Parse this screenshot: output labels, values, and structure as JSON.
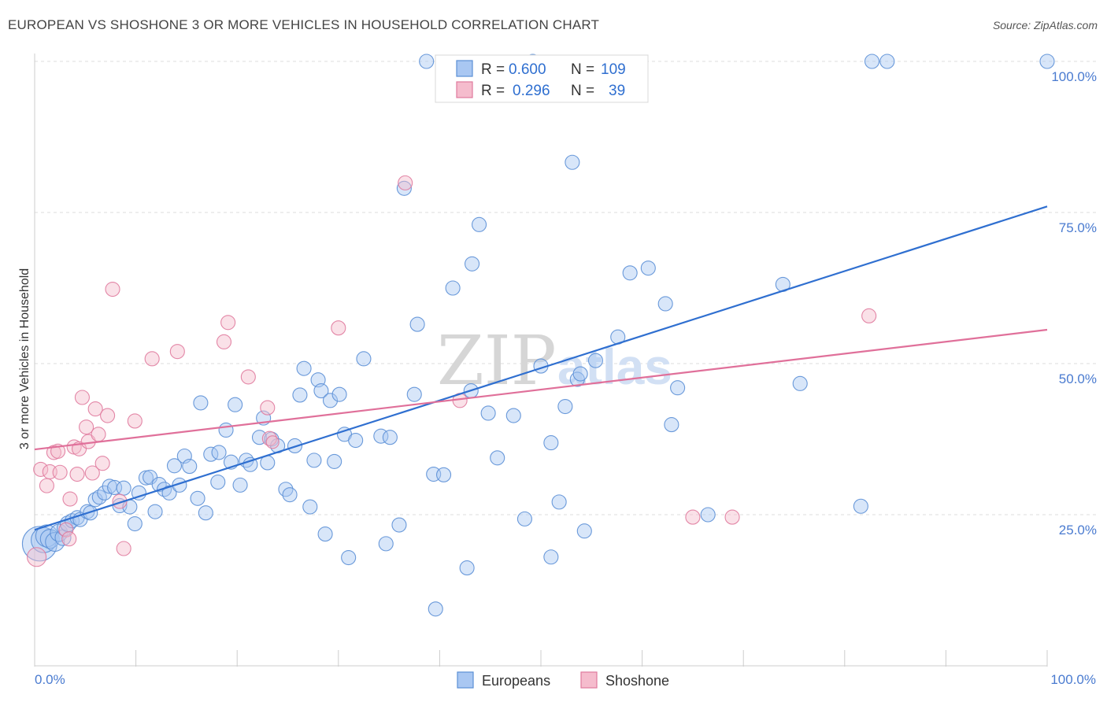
{
  "title": "EUROPEAN VS SHOSHONE 3 OR MORE VEHICLES IN HOUSEHOLD CORRELATION CHART",
  "source": "Source: ZipAtlas.com",
  "watermark": {
    "zip": "ZIP",
    "atlas": "atlas"
  },
  "legend_box": {
    "rows": [
      {
        "r_label": "R =",
        "r_value": "0.600",
        "n_label": "N =",
        "n_value": "109",
        "color": "#a9c7f2",
        "stroke": "#5b8fd6"
      },
      {
        "r_label": "R =",
        "r_value": "0.296",
        "n_label": "N =",
        "n_value": "39",
        "color": "#f5bccd",
        "stroke": "#e07a9d"
      }
    ]
  },
  "bottom_legend": [
    {
      "label": "Europeans",
      "color": "#a9c7f2",
      "stroke": "#5b8fd6"
    },
    {
      "label": "Shoshone",
      "color": "#f5bccd",
      "stroke": "#e07a9d"
    }
  ],
  "chart_data": {
    "type": "scatter",
    "title": "EUROPEAN VS SHOSHONE 3 OR MORE VEHICLES IN HOUSEHOLD CORRELATION CHART",
    "xlabel": "",
    "ylabel": "3 or more Vehicles in Household",
    "xlim": [
      0,
      100
    ],
    "ylim": [
      0,
      100
    ],
    "x_tick_labels": [
      "0.0%",
      "100.0%"
    ],
    "y_ticks": [
      25,
      50,
      75,
      100
    ],
    "y_tick_labels": [
      "25.0%",
      "50.0%",
      "75.0%",
      "100.0%"
    ],
    "grid": true,
    "series": [
      {
        "name": "Europeans",
        "color": "#a9c7f2",
        "stroke": "#5b8fd6",
        "trend": {
          "x": [
            0,
            100
          ],
          "y": [
            22.5,
            76.0
          ],
          "color": "#2f6fd0"
        },
        "points": [
          [
            0.5,
            20.2,
            22
          ],
          [
            0.9,
            20.8,
            16
          ],
          [
            1.2,
            21.5,
            14
          ],
          [
            1.5,
            21.0,
            12
          ],
          [
            2.0,
            20.5,
            12
          ],
          [
            2.4,
            22.0,
            11
          ],
          [
            2.8,
            21.2,
            10
          ],
          [
            3.0,
            22.8,
            10
          ],
          [
            3.3,
            23.5,
            10
          ],
          [
            3.7,
            24.0,
            9
          ],
          [
            4.2,
            24.5,
            9
          ],
          [
            4.5,
            24.2,
            9
          ],
          [
            5.2,
            25.5,
            9
          ],
          [
            5.5,
            25.3,
            9
          ],
          [
            6.0,
            27.5,
            9
          ],
          [
            6.4,
            27.9,
            9
          ],
          [
            6.9,
            28.6,
            9
          ],
          [
            7.4,
            29.7,
            9
          ],
          [
            7.9,
            29.5,
            9
          ],
          [
            8.4,
            26.5,
            9
          ],
          [
            8.8,
            29.4,
            9
          ],
          [
            9.4,
            26.3,
            9
          ],
          [
            9.9,
            23.5,
            9
          ],
          [
            10.3,
            28.6,
            9
          ],
          [
            11.0,
            31.1,
            9
          ],
          [
            11.4,
            31.2,
            9
          ],
          [
            11.9,
            25.5,
            9
          ],
          [
            12.3,
            30.0,
            9
          ],
          [
            12.8,
            29.2,
            9
          ],
          [
            13.3,
            28.6,
            9
          ],
          [
            13.8,
            33.1,
            9
          ],
          [
            14.3,
            29.9,
            9
          ],
          [
            14.8,
            34.7,
            9
          ],
          [
            15.3,
            33.0,
            9
          ],
          [
            16.1,
            27.7,
            9
          ],
          [
            16.4,
            43.5,
            9
          ],
          [
            16.9,
            25.3,
            9
          ],
          [
            17.4,
            35.0,
            9
          ],
          [
            18.2,
            35.3,
            9
          ],
          [
            18.1,
            30.4,
            9
          ],
          [
            18.9,
            39.0,
            9
          ],
          [
            19.4,
            33.7,
            9
          ],
          [
            19.8,
            43.2,
            9
          ],
          [
            20.3,
            29.9,
            9
          ],
          [
            20.9,
            34.0,
            9
          ],
          [
            21.3,
            33.3,
            9
          ],
          [
            22.2,
            37.8,
            9
          ],
          [
            22.6,
            41.0,
            9
          ],
          [
            23.0,
            33.6,
            9
          ],
          [
            23.4,
            37.5,
            9
          ],
          [
            24.0,
            36.4,
            9
          ],
          [
            24.8,
            29.2,
            9
          ],
          [
            25.2,
            28.3,
            9
          ],
          [
            25.7,
            36.4,
            9
          ],
          [
            26.2,
            44.8,
            9
          ],
          [
            26.6,
            49.2,
            9
          ],
          [
            27.2,
            26.3,
            9
          ],
          [
            27.6,
            34.0,
            9
          ],
          [
            28.0,
            47.3,
            9
          ],
          [
            28.3,
            45.5,
            9
          ],
          [
            28.7,
            21.8,
            9
          ],
          [
            29.2,
            43.9,
            9
          ],
          [
            29.6,
            33.8,
            9
          ],
          [
            30.1,
            44.9,
            9
          ],
          [
            30.6,
            38.3,
            9
          ],
          [
            31.0,
            17.9,
            9
          ],
          [
            31.7,
            37.3,
            9
          ],
          [
            32.5,
            50.8,
            9
          ],
          [
            34.2,
            38.0,
            9
          ],
          [
            34.7,
            20.2,
            9
          ],
          [
            35.1,
            37.8,
            9
          ],
          [
            36.0,
            23.3,
            9
          ],
          [
            36.5,
            79.0,
            9
          ],
          [
            37.5,
            44.9,
            9
          ],
          [
            37.8,
            56.5,
            9
          ],
          [
            38.7,
            100.0,
            9
          ],
          [
            39.4,
            31.7,
            9
          ],
          [
            39.6,
            9.4,
            9
          ],
          [
            40.4,
            31.6,
            9
          ],
          [
            41.3,
            62.5,
            9
          ],
          [
            42.7,
            16.2,
            9
          ],
          [
            43.1,
            45.5,
            9
          ],
          [
            43.2,
            66.5,
            9
          ],
          [
            43.9,
            73.0,
            9
          ],
          [
            44.8,
            41.8,
            9
          ],
          [
            45.7,
            34.4,
            9
          ],
          [
            47.3,
            41.4,
            9
          ],
          [
            48.4,
            24.3,
            9
          ],
          [
            49.2,
            100.0,
            9
          ],
          [
            50.0,
            49.6,
            9
          ],
          [
            51.0,
            36.9,
            9
          ],
          [
            51.0,
            18.0,
            9
          ],
          [
            51.8,
            27.1,
            9
          ],
          [
            52.4,
            42.9,
            9
          ],
          [
            53.1,
            83.3,
            9
          ],
          [
            53.6,
            47.4,
            9
          ],
          [
            53.9,
            48.3,
            9
          ],
          [
            54.3,
            22.3,
            9
          ],
          [
            55.4,
            50.5,
            9
          ],
          [
            57.6,
            54.4,
            9
          ],
          [
            58.8,
            65.0,
            9
          ],
          [
            60.6,
            65.8,
            9
          ],
          [
            62.3,
            59.9,
            9
          ],
          [
            62.9,
            39.9,
            9
          ],
          [
            63.5,
            46.0,
            9
          ],
          [
            66.5,
            25.0,
            9
          ],
          [
            73.9,
            63.1,
            9
          ],
          [
            75.6,
            46.7,
            9
          ],
          [
            81.6,
            26.4,
            9
          ],
          [
            82.7,
            100.0,
            9
          ],
          [
            84.2,
            100.0,
            9
          ],
          [
            100.0,
            100.0,
            9
          ]
        ]
      },
      {
        "name": "Shoshone",
        "color": "#f5bccd",
        "stroke": "#e07a9d",
        "trend": {
          "x": [
            0,
            100
          ],
          "y": [
            35.8,
            55.6
          ],
          "color": "#e0709a"
        },
        "points": [
          [
            0.2,
            18.0,
            12
          ],
          [
            0.6,
            32.5,
            9
          ],
          [
            1.2,
            29.8,
            9
          ],
          [
            1.5,
            32.1,
            9
          ],
          [
            1.9,
            35.3,
            9
          ],
          [
            2.3,
            35.5,
            9
          ],
          [
            2.5,
            32.0,
            9
          ],
          [
            3.1,
            22.5,
            9
          ],
          [
            3.4,
            21.0,
            9
          ],
          [
            3.5,
            27.6,
            9
          ],
          [
            3.9,
            36.2,
            9
          ],
          [
            4.2,
            31.7,
            9
          ],
          [
            4.4,
            35.9,
            9
          ],
          [
            4.7,
            44.4,
            9
          ],
          [
            5.1,
            39.5,
            9
          ],
          [
            5.3,
            37.1,
            9
          ],
          [
            5.7,
            31.9,
            9
          ],
          [
            6.0,
            42.5,
            9
          ],
          [
            6.3,
            38.3,
            9
          ],
          [
            6.7,
            33.5,
            9
          ],
          [
            7.2,
            41.4,
            9
          ],
          [
            7.7,
            62.3,
            9
          ],
          [
            8.4,
            27.2,
            9
          ],
          [
            8.8,
            19.4,
            9
          ],
          [
            9.9,
            40.5,
            9
          ],
          [
            11.6,
            50.8,
            9
          ],
          [
            14.1,
            52.0,
            9
          ],
          [
            18.7,
            53.6,
            9
          ],
          [
            19.1,
            56.8,
            9
          ],
          [
            21.1,
            47.8,
            9
          ],
          [
            23.0,
            42.7,
            9
          ],
          [
            23.2,
            37.6,
            9
          ],
          [
            30.0,
            55.9,
            9
          ],
          [
            36.6,
            79.9,
            9
          ],
          [
            42.0,
            43.9,
            9
          ],
          [
            65.0,
            24.6,
            9
          ],
          [
            68.9,
            24.6,
            9
          ],
          [
            82.4,
            57.9,
            9
          ],
          [
            23.5,
            37.0,
            8
          ]
        ]
      }
    ]
  }
}
